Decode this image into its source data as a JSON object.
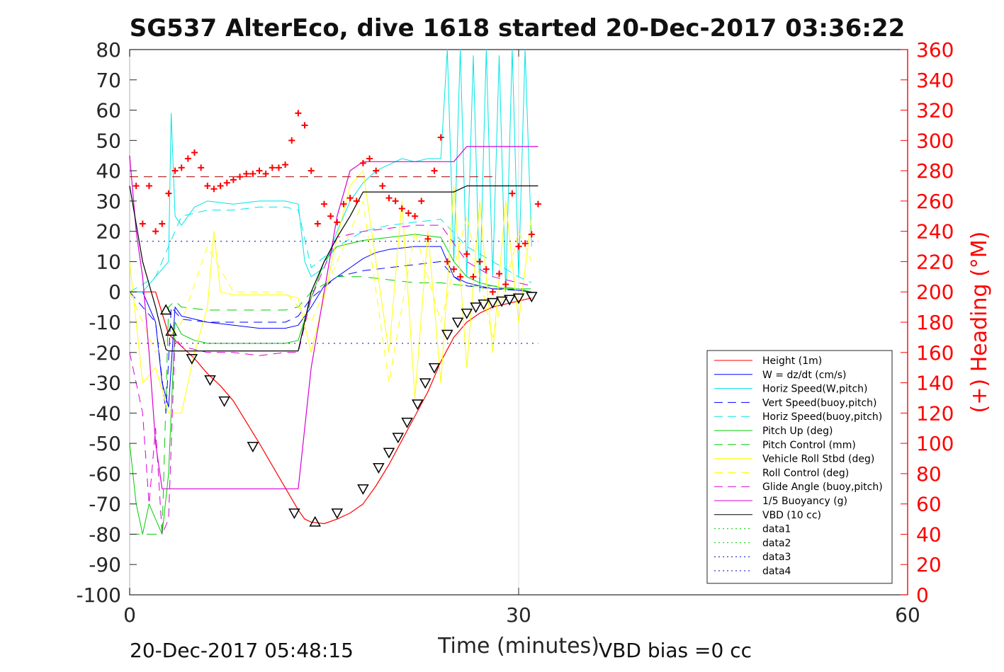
{
  "chart_data": {
    "type": "line",
    "title": "SG537 AlterEco, dive 1618 started 20-Dec-2017 03:36:22",
    "xlabel": "Time (minutes)",
    "ylabel": "",
    "y2label": "(+) Heading (°M)",
    "xlim": [
      0,
      60
    ],
    "ylim": [
      -100,
      80
    ],
    "y2lim": [
      0,
      360
    ],
    "x_ticks": [
      "0",
      "30",
      "60"
    ],
    "y_ticks": [
      "80",
      "70",
      "60",
      "50",
      "40",
      "30",
      "20",
      "10",
      "0",
      "-10",
      "-20",
      "-30",
      "-40",
      "-50",
      "-60",
      "-70",
      "-80",
      "-90",
      "-100"
    ],
    "y2_ticks": [
      "360",
      "340",
      "320",
      "300",
      "280",
      "260",
      "240",
      "220",
      "200",
      "180",
      "160",
      "140",
      "120",
      "100",
      "80",
      "60",
      "40",
      "20",
      "0"
    ],
    "grid": "x-only",
    "legend_position": "lower-right",
    "footer_left": "20-Dec-2017 05:48:15",
    "footer_right": "VBD bias =0 cc",
    "colors": {
      "red": "#ff0000",
      "blue": "#0000ff",
      "darkblue": "#0000aa",
      "cyan": "#00e5e5",
      "green": "#00cc00",
      "yellow": "#ffff00",
      "magenta": "#d700d7",
      "black": "#000000"
    },
    "legend": [
      {
        "label": "Height (1m)",
        "color": "#ff0000",
        "style": "solid"
      },
      {
        "label": "W = dz/dt (cm/s)",
        "color": "#0000ff",
        "style": "solid"
      },
      {
        "label": "Horiz Speed(W,pitch)",
        "color": "#00e5e5",
        "style": "solid"
      },
      {
        "label": "Vert Speed(buoy,pitch)",
        "color": "#0000ff",
        "style": "dashed"
      },
      {
        "label": "Horiz Speed(buoy,pitch)",
        "color": "#00e5e5",
        "style": "dashed"
      },
      {
        "label": "Pitch Up (deg)",
        "color": "#00cc00",
        "style": "solid"
      },
      {
        "label": "Pitch Control (mm)",
        "color": "#00cc00",
        "style": "dashed"
      },
      {
        "label": "Vehicle Roll Stbd (deg)",
        "color": "#ffff00",
        "style": "solid"
      },
      {
        "label": "Roll Control (deg)",
        "color": "#ffff00",
        "style": "dashed"
      },
      {
        "label": "Glide Angle (buoy,pitch)",
        "color": "#d700d7",
        "style": "dashed"
      },
      {
        "label": "1/5 Buoyancy (g)",
        "color": "#d700d7",
        "style": "solid"
      },
      {
        "label": "VBD (10 cc)",
        "color": "#000000",
        "style": "solid"
      },
      {
        "label": "data1",
        "color": "#00cc00",
        "style": "dotted"
      },
      {
        "label": "data2",
        "color": "#00cc00",
        "style": "dotted"
      },
      {
        "label": "data3",
        "color": "#0000aa",
        "style": "dotted"
      },
      {
        "label": "data4",
        "color": "#0000aa",
        "style": "dotted"
      }
    ],
    "series": [
      {
        "name": "Height (1m)",
        "color": "#ff0000",
        "dash": "",
        "width": 1.2,
        "x": [
          0,
          1,
          2,
          3,
          4,
          5,
          6,
          7,
          8,
          10,
          13,
          13.5,
          14,
          15,
          16,
          17,
          18,
          19,
          20,
          21,
          22,
          23,
          24,
          25,
          26,
          27,
          28,
          29,
          30,
          31
        ],
        "y": [
          0,
          0,
          0,
          -14,
          -18,
          -22,
          -27,
          -31,
          -36,
          -50,
          -72,
          -75,
          -76,
          -76.5,
          -75,
          -73,
          -70,
          -64,
          -57,
          -49,
          -41,
          -33,
          -23,
          -15,
          -10,
          -7,
          -5,
          -4,
          -3,
          -2
        ]
      },
      {
        "name": "W = dz/dt (cm/s)",
        "color": "#0000ff",
        "dash": "",
        "width": 1,
        "x": [
          0,
          1,
          2,
          2.5,
          3,
          3.5,
          4,
          6,
          8,
          10,
          12,
          13,
          14,
          15,
          16,
          17,
          18,
          19,
          20,
          22,
          24,
          25,
          26,
          27,
          28,
          29,
          30,
          31
        ],
        "y": [
          0,
          0,
          -10,
          -30,
          -38,
          -5,
          -8,
          -10,
          -11,
          -12,
          -12,
          -11,
          -5,
          2,
          5,
          8,
          11,
          13,
          14,
          15,
          15,
          5,
          3,
          2,
          1,
          1,
          0.5,
          0
        ]
      },
      {
        "name": "Horiz Speed(W,pitch)",
        "color": "#00e5e5",
        "dash": "",
        "width": 1,
        "x": [
          0,
          1,
          2,
          3,
          3.2,
          3.5,
          4,
          5,
          6,
          8,
          10,
          12,
          13,
          13.5,
          14,
          15,
          16,
          17,
          18,
          19,
          20,
          21,
          22,
          23,
          24,
          24.5,
          25,
          25.5,
          26,
          26.5,
          27,
          27.5,
          28,
          28.5,
          29,
          29.5,
          30,
          30.5,
          31
        ],
        "y": [
          0,
          0,
          5,
          10,
          59,
          25,
          22,
          28,
          30,
          29,
          30,
          30,
          29,
          10,
          5,
          8,
          20,
          30,
          36,
          40,
          42,
          44,
          43,
          44,
          44,
          80,
          10,
          80,
          5,
          78,
          0,
          80,
          5,
          78,
          0,
          80,
          5,
          80,
          15
        ]
      },
      {
        "name": "Vert Speed(buoy,pitch)",
        "color": "#0000ff",
        "dash": "12,8",
        "width": 1,
        "x": [
          0,
          2,
          2.8,
          3.2,
          4,
          6,
          8,
          10,
          12,
          13,
          14,
          16,
          18,
          20,
          22,
          24,
          25,
          26,
          28,
          30,
          31
        ],
        "y": [
          0,
          -10,
          -40,
          -5,
          -9,
          -10,
          -10,
          -10,
          -10,
          -8,
          -2,
          5,
          7,
          8,
          9,
          10,
          5,
          2,
          1,
          0.5,
          0
        ]
      },
      {
        "name": "Horiz Speed(buoy,pitch)",
        "color": "#00e5e5",
        "dash": "12,8",
        "width": 1,
        "x": [
          0,
          2,
          3,
          4,
          6,
          8,
          10,
          12,
          13,
          14,
          16,
          18,
          20,
          22,
          24,
          26,
          28,
          30,
          31
        ],
        "y": [
          0,
          5,
          15,
          25,
          27,
          27,
          28,
          28,
          27,
          8,
          15,
          20,
          22,
          23,
          24,
          15,
          10,
          5,
          3
        ]
      },
      {
        "name": "Pitch Up (deg)",
        "color": "#00cc00",
        "dash": "",
        "width": 1,
        "x": [
          0,
          0.5,
          1,
          1.5,
          2,
          2.5,
          3,
          3.5,
          4,
          5,
          6,
          8,
          10,
          12,
          13,
          14,
          15,
          16,
          18,
          20,
          22,
          24,
          25,
          26,
          27,
          28,
          29,
          30,
          31
        ],
        "y": [
          -50,
          -70,
          -80,
          -70,
          -75,
          -80,
          -60,
          -10,
          -14,
          -16,
          -17,
          -17,
          -17,
          -17,
          -16,
          -2,
          10,
          15,
          17,
          18,
          19,
          18,
          10,
          5,
          3,
          2,
          1,
          1,
          0
        ]
      },
      {
        "name": "Pitch Control (mm)",
        "color": "#00cc00",
        "dash": "14,10",
        "width": 1,
        "x": [
          0,
          2,
          2.5,
          3,
          3.5,
          4,
          6,
          8,
          10,
          12,
          13,
          14,
          16,
          18,
          20,
          22,
          24,
          26,
          28,
          30,
          31
        ],
        "y": [
          -80,
          -80,
          -80,
          -5,
          -3,
          -5,
          -6,
          -6,
          -6,
          -6,
          -5,
          0,
          5,
          5,
          4,
          3,
          3,
          2,
          2,
          1,
          1
        ]
      },
      {
        "name": "Vehicle Roll Stbd (deg)",
        "color": "#ffff00",
        "dash": "",
        "width": 1,
        "x": [
          0,
          1,
          2,
          3,
          4,
          5,
          6,
          6.5,
          7,
          8,
          10,
          12,
          13,
          14,
          15,
          16,
          17,
          18,
          19,
          20,
          21,
          22,
          23,
          24,
          25,
          26,
          27,
          28,
          29,
          30,
          31
        ],
        "y": [
          10,
          -30,
          -25,
          -40,
          -40,
          -20,
          -5,
          20,
          0,
          -1,
          -1,
          -1,
          -2,
          -20,
          -2,
          18,
          35,
          40,
          10,
          -20,
          30,
          -35,
          20,
          -30,
          35,
          -25,
          30,
          -20,
          30,
          -10,
          25
        ]
      },
      {
        "name": "Roll Control (deg)",
        "color": "#ffff00",
        "dash": "10,8",
        "width": 1,
        "x": [
          0,
          2,
          4,
          6,
          8,
          10,
          12,
          14,
          16,
          18,
          20,
          22,
          24,
          26,
          28,
          30,
          31
        ],
        "y": [
          0,
          -20,
          -10,
          15,
          0,
          0,
          0,
          -10,
          10,
          30,
          -30,
          20,
          -10,
          25,
          -15,
          20,
          10
        ]
      },
      {
        "name": "Glide Angle (buoy,pitch)",
        "color": "#d700d7",
        "dash": "12,8",
        "width": 1,
        "x": [
          0,
          1,
          1.5,
          2,
          2.5,
          3,
          3.5,
          4,
          6,
          8,
          10,
          12,
          13,
          14,
          16,
          18,
          20,
          22,
          24,
          26,
          28,
          30,
          31
        ],
        "y": [
          -20,
          -40,
          -70,
          -45,
          -80,
          -75,
          -15,
          -18,
          -20,
          -20,
          -21,
          -20,
          -20,
          -2,
          18,
          20,
          21,
          22,
          22,
          10,
          5,
          3,
          2
        ]
      },
      {
        "name": "1/5 Buoyancy (g)",
        "color": "#d700d7",
        "dash": "",
        "width": 1.2,
        "x": [
          0,
          0.5,
          1,
          1.5,
          2,
          2.5,
          3,
          13,
          14,
          15,
          16,
          17,
          18,
          24,
          25,
          26,
          31.5
        ],
        "y": [
          45,
          20,
          5,
          -20,
          -50,
          -65,
          -65,
          -65,
          -25,
          0,
          25,
          40,
          43,
          43,
          43,
          48,
          48
        ]
      },
      {
        "name": "VBD (10 cc)",
        "color": "#000000",
        "dash": "",
        "width": 1.2,
        "x": [
          0,
          1,
          2,
          2.8,
          3,
          4,
          6,
          8,
          10,
          13,
          14,
          15,
          16,
          17,
          18,
          24,
          25,
          26,
          31.5
        ],
        "y": [
          35,
          10,
          -5,
          -19,
          -19.5,
          -19.5,
          -19.5,
          -19.5,
          -19.5,
          -19.5,
          0,
          10,
          18,
          25,
          33,
          33,
          33,
          35,
          35
        ]
      },
      {
        "name": "data3",
        "color": "#0000aa",
        "dash": "2,6",
        "width": 1,
        "x": [
          0,
          31.5
        ],
        "y": [
          16.7,
          16.7
        ]
      },
      {
        "name": "data4",
        "color": "#0000aa",
        "dash": "2,6",
        "width": 1,
        "x": [
          0,
          31.5
        ],
        "y": [
          -17,
          -17
        ]
      }
    ],
    "heading_reference": {
      "value": 276,
      "color": "#aa0000",
      "dash": "12,8"
    },
    "heading_points": {
      "marker": "+",
      "color": "#ff0000",
      "x": [
        0.5,
        1,
        1.5,
        2,
        2.5,
        3,
        3.5,
        4,
        4.5,
        5,
        5.5,
        6,
        6.5,
        7,
        7.5,
        8,
        8.5,
        9,
        9.5,
        10,
        10.5,
        11,
        11.5,
        12,
        12.5,
        13,
        13.5,
        14,
        14.5,
        15,
        15.5,
        16,
        16.5,
        17,
        17.5,
        18,
        18.5,
        19,
        19.5,
        20,
        20.5,
        21,
        21.5,
        22,
        22.5,
        23,
        23.5,
        24,
        24.5,
        25,
        25.5,
        26,
        26.5,
        27,
        27.5,
        28,
        28.5,
        29,
        29.5,
        30,
        30.5,
        31,
        31.5
      ],
      "y": [
        270,
        245,
        270,
        240,
        245,
        265,
        280,
        282,
        288,
        292,
        282,
        270,
        268,
        270,
        272,
        274,
        276,
        278,
        278,
        280,
        278,
        282,
        282,
        284,
        300,
        318,
        310,
        280,
        245,
        258,
        250,
        246,
        258,
        262,
        260,
        285,
        288,
        280,
        270,
        262,
        260,
        255,
        252,
        250,
        260,
        235,
        280,
        302,
        220,
        215,
        210,
        225,
        210,
        220,
        215,
        200,
        212,
        205,
        265,
        230,
        232,
        238,
        258
      ]
    },
    "depth_markers": {
      "color": "#000000",
      "points": [
        {
          "x": 2.8,
          "y": -6,
          "shape": "up"
        },
        {
          "x": 3.2,
          "y": -13,
          "shape": "up"
        },
        {
          "x": 4.8,
          "y": -22,
          "shape": "down"
        },
        {
          "x": 6.2,
          "y": -29,
          "shape": "down"
        },
        {
          "x": 7.3,
          "y": -36,
          "shape": "down"
        },
        {
          "x": 9.5,
          "y": -51,
          "shape": "down"
        },
        {
          "x": 12.7,
          "y": -73,
          "shape": "down"
        },
        {
          "x": 14.3,
          "y": -76,
          "shape": "up"
        },
        {
          "x": 16.0,
          "y": -73,
          "shape": "down"
        },
        {
          "x": 18.0,
          "y": -65,
          "shape": "down"
        },
        {
          "x": 19.2,
          "y": -58,
          "shape": "down"
        },
        {
          "x": 20.0,
          "y": -53,
          "shape": "down"
        },
        {
          "x": 20.7,
          "y": -48,
          "shape": "down"
        },
        {
          "x": 21.4,
          "y": -43,
          "shape": "down"
        },
        {
          "x": 22.2,
          "y": -37,
          "shape": "down"
        },
        {
          "x": 22.8,
          "y": -30,
          "shape": "down"
        },
        {
          "x": 23.5,
          "y": -25,
          "shape": "down"
        },
        {
          "x": 24.5,
          "y": -14,
          "shape": "down"
        },
        {
          "x": 25.3,
          "y": -10,
          "shape": "down"
        },
        {
          "x": 26.0,
          "y": -7,
          "shape": "down"
        },
        {
          "x": 26.7,
          "y": -5,
          "shape": "down"
        },
        {
          "x": 27.3,
          "y": -4,
          "shape": "down"
        },
        {
          "x": 28.0,
          "y": -3.5,
          "shape": "down"
        },
        {
          "x": 28.7,
          "y": -3,
          "shape": "down"
        },
        {
          "x": 29.3,
          "y": -2.5,
          "shape": "down"
        },
        {
          "x": 30.0,
          "y": -2,
          "shape": "down"
        },
        {
          "x": 31.0,
          "y": -1.5,
          "shape": "down"
        }
      ]
    }
  }
}
